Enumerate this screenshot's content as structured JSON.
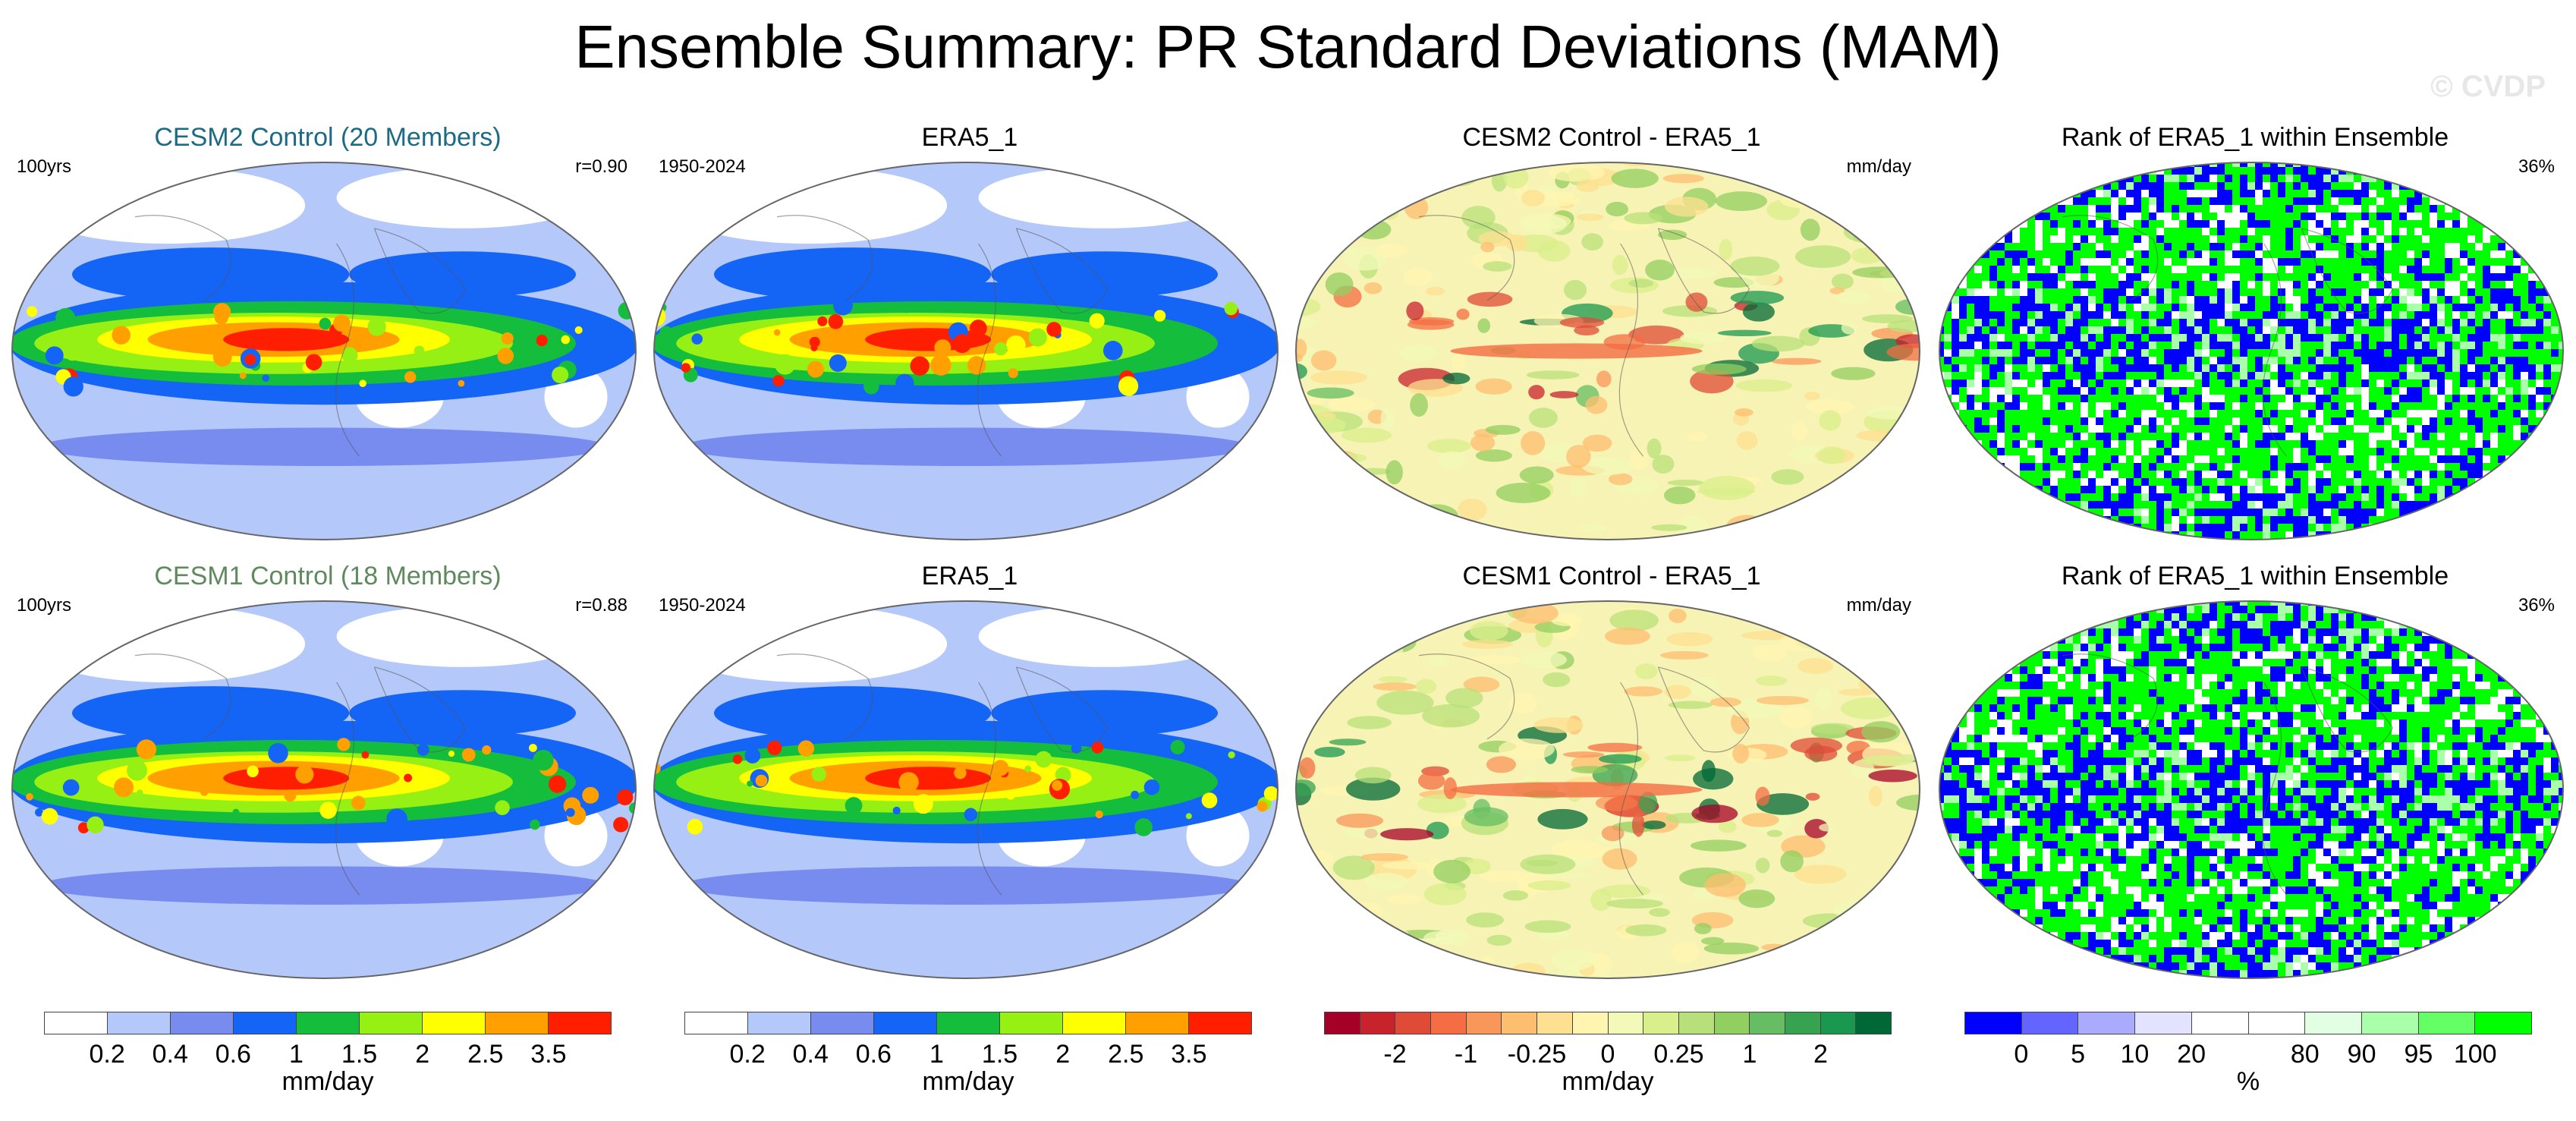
{
  "title": "Ensemble Summary: PR Standard Deviations (MAM)",
  "watermark": "© CVDP",
  "rows": [
    {
      "panels": [
        {
          "title": "CESM2 Control (20 Members)",
          "left": "100yrs",
          "right": "r=0.90",
          "kind": "std"
        },
        {
          "title": "ERA5_1",
          "left": "1950-2024",
          "right": "",
          "kind": "std"
        },
        {
          "title": "CESM2 Control - ERA5_1",
          "left": "",
          "right": "mm/day",
          "kind": "diff"
        },
        {
          "title": "Rank of ERA5_1 within Ensemble",
          "left": "",
          "right": "36%",
          "kind": "rank"
        }
      ]
    },
    {
      "panels": [
        {
          "title": "CESM1 Control (18 Members)",
          "left": "100yrs",
          "right": "r=0.88",
          "kind": "std"
        },
        {
          "title": "ERA5_1",
          "left": "1950-2024",
          "right": "",
          "kind": "std"
        },
        {
          "title": "CESM1 Control - ERA5_1",
          "left": "",
          "right": "mm/day",
          "kind": "diff"
        },
        {
          "title": "Rank of ERA5_1 within Ensemble",
          "left": "",
          "right": "36%",
          "kind": "rank"
        }
      ]
    }
  ],
  "colorbars": [
    {
      "unit": "mm/day",
      "colors": [
        "#ffffff",
        "#b4c8fa",
        "#788cf0",
        "#1464f5",
        "#14be3c",
        "#96f014",
        "#ffff00",
        "#ffa000",
        "#ff1e00"
      ],
      "tick_labels": [
        "0.2",
        "0.4",
        "0.6",
        "1",
        "1.5",
        "2",
        "2.5",
        "3.5"
      ]
    },
    {
      "unit": "mm/day",
      "colors": [
        "#ffffff",
        "#b4c8fa",
        "#788cf0",
        "#1464f5",
        "#14be3c",
        "#96f014",
        "#ffff00",
        "#ffa000",
        "#ff1e00"
      ],
      "tick_labels": [
        "0.2",
        "0.4",
        "0.6",
        "1",
        "1.5",
        "2",
        "2.5",
        "3.5"
      ]
    },
    {
      "unit": "mm/day",
      "colors": [
        "#a50026",
        "#c8222c",
        "#e04b37",
        "#f46d43",
        "#f99659",
        "#fdbe70",
        "#fee090",
        "#fff5b0",
        "#f3f9b8",
        "#d9ef8b",
        "#b8e07a",
        "#91cf60",
        "#66bd63",
        "#37a351",
        "#1a9850",
        "#006837"
      ],
      "tick_labels": [
        "-2",
        "-1",
        "-0.25",
        "0",
        "0.25",
        "1",
        "2"
      ],
      "tick_positions": [
        2,
        4,
        6,
        8,
        10,
        12,
        14
      ]
    },
    {
      "unit": "%",
      "colors": [
        "#0000ff",
        "#6464ff",
        "#aaaaff",
        "#e3e3ff",
        "#ffffff",
        "#ffffff",
        "#e3ffe3",
        "#aaffaa",
        "#64ff64",
        "#00ff00"
      ],
      "tick_labels": [
        "0",
        "5",
        "10",
        "20",
        "80",
        "90",
        "95",
        "100"
      ],
      "tick_positions": [
        1,
        2,
        3,
        4,
        6,
        7,
        8,
        9
      ]
    }
  ],
  "colors": {
    "std_fill_base": "#b4c8fa",
    "diff_fill_base": "#f6f3b4",
    "rank_blue": "#0000ff",
    "rank_green": "#00ff00"
  }
}
